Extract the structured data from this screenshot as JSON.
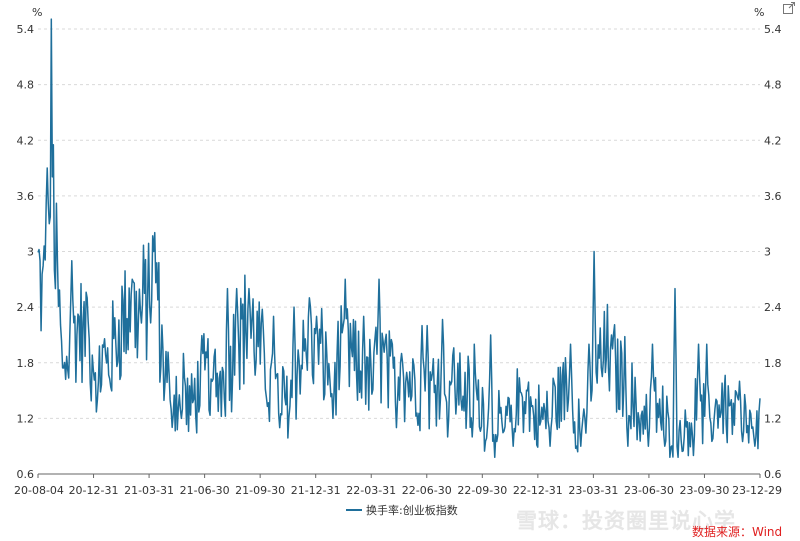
{
  "chart_data": {
    "type": "line",
    "y_unit_left": "%",
    "y_unit_right": "%",
    "ylim": [
      0.6,
      5.4
    ],
    "y_ticks": [
      "0.6",
      "1.2",
      "1.8",
      "2.4",
      "3",
      "3.6",
      "4.2",
      "4.8",
      "5.4"
    ],
    "x_tick_labels": [
      "20-08-04",
      "20-12-31",
      "21-03-31",
      "21-06-30",
      "21-09-30",
      "21-12-31",
      "22-03-31",
      "22-06-30",
      "22-09-30",
      "22-12-31",
      "23-03-31",
      "23-06-30",
      "23-09-30",
      "23-12-29"
    ],
    "series": [
      {
        "name": "换手率:创业板指数",
        "color": "#1f6f9b",
        "knots": [
          [
            0,
            2.8
          ],
          [
            4,
            2.4
          ],
          [
            8,
            3.0
          ],
          [
            12,
            3.6
          ],
          [
            13,
            4.4
          ],
          [
            16,
            3.2
          ],
          [
            20,
            2.4
          ],
          [
            25,
            1.6
          ],
          [
            30,
            2.0
          ],
          [
            40,
            2.2
          ],
          [
            55,
            1.8
          ],
          [
            70,
            1.8
          ],
          [
            80,
            2.2
          ],
          [
            90,
            2.4
          ],
          [
            100,
            2.3
          ],
          [
            110,
            2.6
          ],
          [
            115,
            2.9
          ],
          [
            120,
            1.9
          ],
          [
            130,
            1.5
          ],
          [
            140,
            1.4
          ],
          [
            150,
            1.3
          ],
          [
            155,
            1.5
          ],
          [
            165,
            1.7
          ],
          [
            175,
            1.6
          ],
          [
            185,
            1.7
          ],
          [
            195,
            2.1
          ],
          [
            205,
            2.2
          ],
          [
            215,
            2.0
          ],
          [
            225,
            1.6
          ],
          [
            235,
            1.4
          ],
          [
            245,
            1.4
          ],
          [
            255,
            1.8
          ],
          [
            265,
            2.0
          ],
          [
            275,
            1.9
          ],
          [
            285,
            1.7
          ],
          [
            295,
            1.8
          ],
          [
            305,
            1.9
          ],
          [
            315,
            1.6
          ],
          [
            325,
            1.6
          ],
          [
            335,
            1.9
          ],
          [
            345,
            1.6
          ],
          [
            355,
            1.7
          ],
          [
            365,
            1.6
          ],
          [
            375,
            1.5
          ],
          [
            385,
            1.5
          ],
          [
            395,
            1.9
          ],
          [
            405,
            1.6
          ],
          [
            415,
            1.5
          ],
          [
            425,
            1.4
          ],
          [
            435,
            1.3
          ],
          [
            445,
            1.1
          ],
          [
            455,
            1.1
          ],
          [
            465,
            1.3
          ],
          [
            475,
            1.5
          ],
          [
            485,
            1.2
          ],
          [
            495,
            1.2
          ],
          [
            505,
            1.4
          ],
          [
            515,
            1.5
          ],
          [
            525,
            1.2
          ],
          [
            535,
            1.3
          ],
          [
            545,
            1.7
          ],
          [
            555,
            1.9
          ],
          [
            565,
            1.7
          ],
          [
            575,
            1.6
          ],
          [
            585,
            1.2
          ],
          [
            595,
            1.3
          ],
          [
            605,
            1.3
          ],
          [
            615,
            1.1
          ],
          [
            625,
            1.1
          ],
          [
            635,
            1.2
          ],
          [
            645,
            1.3
          ],
          [
            655,
            1.1
          ],
          [
            665,
            1.4
          ],
          [
            675,
            1.3
          ],
          [
            685,
            1.2
          ],
          [
            695,
            1.1
          ],
          [
            705,
            1.1
          ]
        ],
        "spikes": [
          [
            9,
            3.9
          ],
          [
            11,
            3.3
          ],
          [
            17,
            2.6
          ],
          [
            33,
            2.9
          ],
          [
            48,
            2.5
          ],
          [
            92,
            2.7
          ],
          [
            113,
            3.0
          ],
          [
            142,
            1.9
          ],
          [
            185,
            2.6
          ],
          [
            194,
            2.6
          ],
          [
            206,
            2.6
          ],
          [
            230,
            2.3
          ],
          [
            250,
            2.4
          ],
          [
            265,
            2.5
          ],
          [
            272,
            2.3
          ],
          [
            300,
            2.7
          ],
          [
            318,
            2.3
          ],
          [
            333,
            2.7
          ],
          [
            355,
            1.9
          ],
          [
            375,
            2.2
          ],
          [
            380,
            2.2
          ],
          [
            426,
            2.0
          ],
          [
            442,
            2.1
          ],
          [
            520,
            2.0
          ],
          [
            538,
            2.0
          ],
          [
            543,
            3.0
          ],
          [
            560,
            2.1
          ],
          [
            600,
            2.0
          ],
          [
            622,
            2.6
          ],
          [
            645,
            2.0
          ],
          [
            653,
            2.0
          ],
          [
            685,
            1.6
          ]
        ],
        "lows": [
          [
            58,
            1.4
          ],
          [
            130,
            1.3
          ],
          [
            140,
            1.2
          ],
          [
            170,
            1.6
          ],
          [
            236,
            1.1
          ],
          [
            288,
            1.2
          ],
          [
            350,
            1.1
          ],
          [
            400,
            1.0
          ],
          [
            424,
            1.0
          ],
          [
            448,
            0.95
          ],
          [
            464,
            0.9
          ],
          [
            500,
            0.9
          ],
          [
            530,
            0.9
          ],
          [
            576,
            0.9
          ],
          [
            596,
            0.9
          ],
          [
            612,
            0.9
          ],
          [
            630,
            0.85
          ],
          [
            640,
            0.8
          ],
          [
            688,
            0.95
          ],
          [
            700,
            0.9
          ]
        ]
      }
    ],
    "legend_position": "bottom-center",
    "grid": true
  },
  "ui": {
    "export_icon": "export-icon",
    "watermark_text": "雪球：投资圈里说心学",
    "source_text": "数据来源：Wind"
  }
}
